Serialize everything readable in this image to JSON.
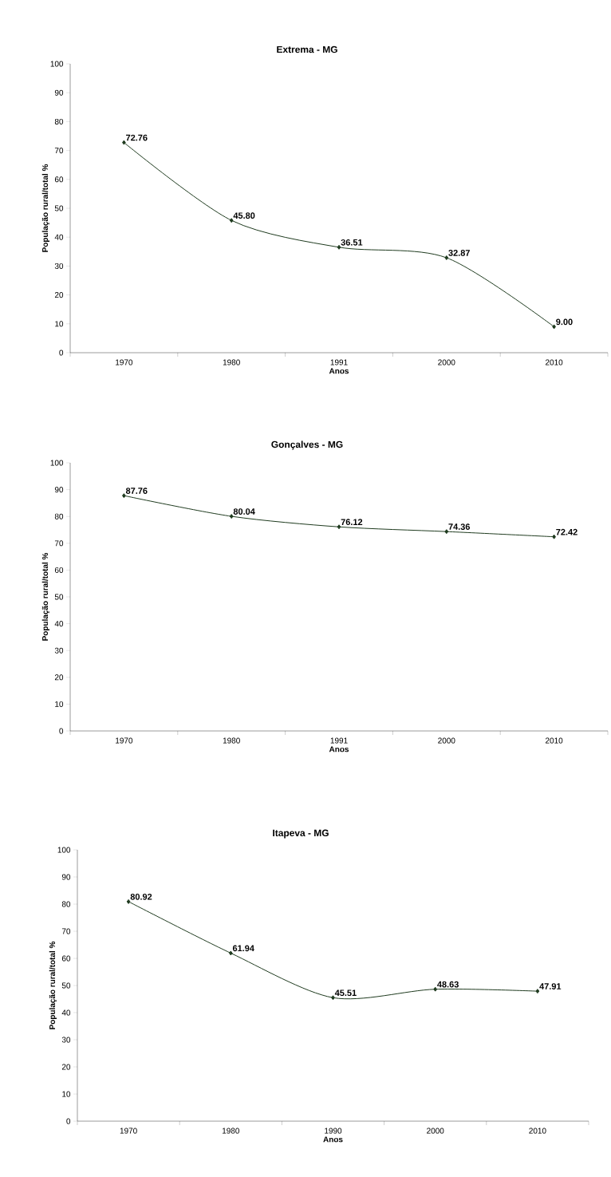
{
  "chart_data": [
    {
      "type": "line",
      "title": "Extrema - MG",
      "xlabel": "Anos",
      "ylabel": "População rural/total %",
      "categories": [
        "1970",
        "1980",
        "1991",
        "2000",
        "2010"
      ],
      "series": [
        {
          "color": "#1e3a1e",
          "values": [
            72.76,
            45.8,
            36.51,
            32.87,
            9.0
          ],
          "value_labels": [
            "72.76",
            "45.80",
            "36.51",
            "32.87",
            "9.00"
          ]
        }
      ],
      "ylim": [
        0,
        100
      ],
      "yticks": [
        0,
        10,
        20,
        30,
        40,
        50,
        60,
        70,
        80,
        90,
        100
      ],
      "grid": false,
      "marker": "diamond",
      "line_style": "solid"
    },
    {
      "type": "line",
      "title": "Gonçalves - MG",
      "xlabel": "Anos",
      "ylabel": "População rural/total %",
      "categories": [
        "1970",
        "1980",
        "1991",
        "2000",
        "2010"
      ],
      "series": [
        {
          "color": "#1e3a1e",
          "values": [
            87.76,
            80.04,
            76.12,
            74.36,
            72.42
          ],
          "value_labels": [
            "87.76",
            "80.04",
            "76.12",
            "74.36",
            "72.42"
          ]
        }
      ],
      "ylim": [
        0,
        100
      ],
      "yticks": [
        0,
        10,
        20,
        30,
        40,
        50,
        60,
        70,
        80,
        90,
        100
      ],
      "grid": false,
      "marker": "diamond",
      "line_style": "solid"
    },
    {
      "type": "line",
      "title": "Itapeva - MG",
      "xlabel": "Anos",
      "ylabel": "População rural/total %",
      "categories": [
        "1970",
        "1980",
        "1990",
        "2000",
        "2010"
      ],
      "series": [
        {
          "color": "#1e3a1e",
          "values": [
            80.92,
            61.94,
            45.51,
            48.63,
            47.91
          ],
          "value_labels": [
            "80.92",
            "61.94",
            "45.51",
            "48.63",
            "47.91"
          ]
        }
      ],
      "ylim": [
        0,
        100
      ],
      "yticks": [
        0,
        10,
        20,
        30,
        40,
        50,
        60,
        70,
        80,
        90,
        100
      ],
      "grid": false,
      "marker": "diamond",
      "line_style": "solid"
    }
  ]
}
